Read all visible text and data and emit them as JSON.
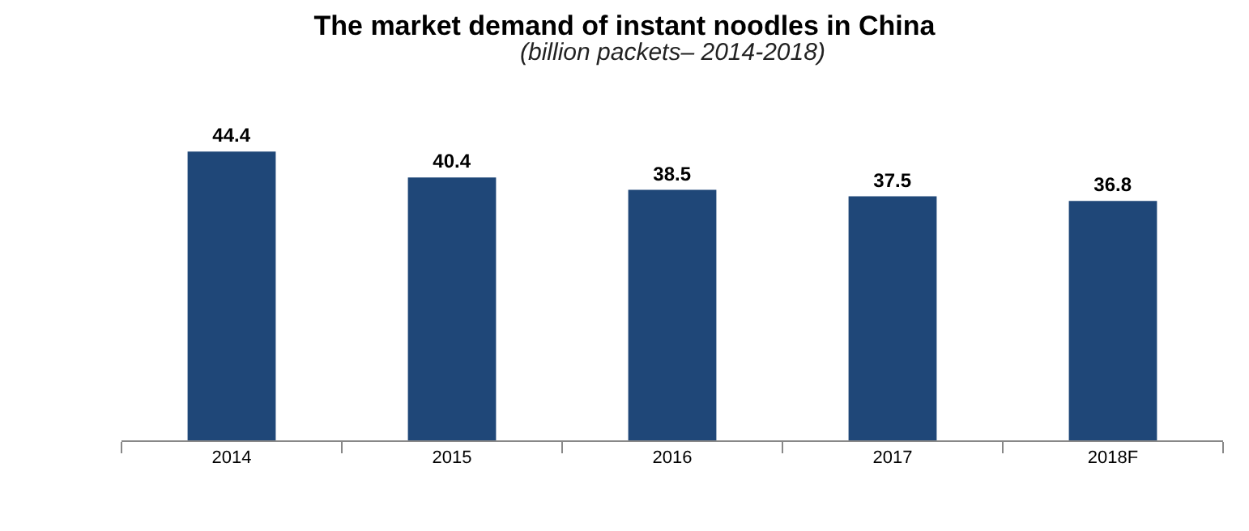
{
  "chart_data": {
    "type": "bar",
    "title": "The market demand of instant noodles in China",
    "subtitle": "(billion packets– 2014-2018)",
    "categories": [
      "2014",
      "2015",
      "2016",
      "2017",
      "2018F"
    ],
    "values": [
      44.4,
      40.4,
      38.5,
      37.5,
      36.8
    ],
    "color": "#1f4778",
    "data_labels": true,
    "grid": false,
    "tick_labels": "x"
  }
}
